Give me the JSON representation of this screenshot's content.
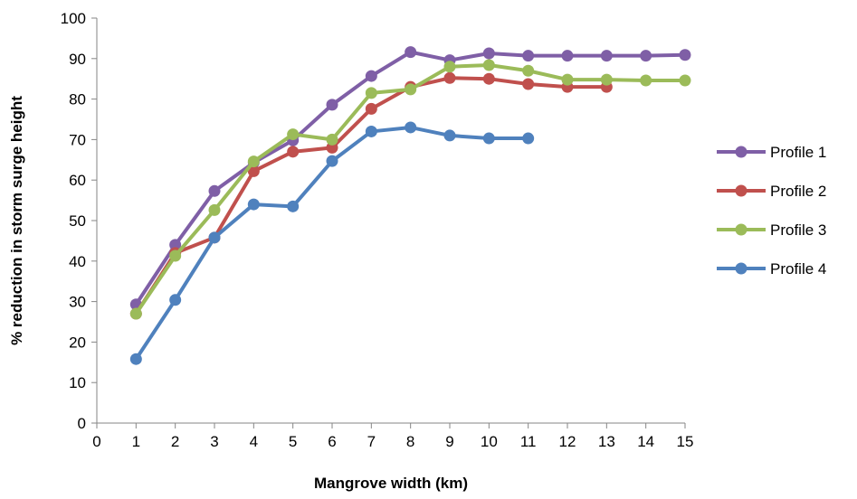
{
  "chart_data": {
    "type": "line",
    "title": "",
    "xlabel": "Mangrove width (km)",
    "ylabel": "% reduction in storm surge height",
    "xlim": [
      0,
      15
    ],
    "ylim": [
      0,
      100
    ],
    "x_ticks": [
      0,
      1,
      2,
      3,
      4,
      5,
      6,
      7,
      8,
      9,
      10,
      11,
      12,
      13,
      14,
      15
    ],
    "y_ticks": [
      0,
      10,
      20,
      30,
      40,
      50,
      60,
      70,
      80,
      90,
      100
    ],
    "grid": false,
    "legend_position": "right",
    "series": [
      {
        "name": "Profile 1",
        "color": "#7f5fa6",
        "x": [
          1,
          2,
          3,
          4,
          5,
          6,
          7,
          8,
          9,
          10,
          11,
          12,
          13,
          14,
          15
        ],
        "y": [
          29.3,
          44.0,
          57.3,
          64.3,
          69.8,
          78.6,
          85.7,
          91.6,
          89.6,
          91.3,
          90.7,
          90.7,
          90.7,
          90.7,
          90.9
        ]
      },
      {
        "name": "Profile 2",
        "color": "#c0504d",
        "x": [
          1,
          2,
          3,
          4,
          5,
          6,
          7,
          8,
          9,
          10,
          11,
          12,
          13
        ],
        "y": [
          27.0,
          42.0,
          45.8,
          62.2,
          67.0,
          68.0,
          77.6,
          83.0,
          85.2,
          85.0,
          83.7,
          83.0,
          83.0
        ]
      },
      {
        "name": "Profile 3",
        "color": "#9bbb59",
        "x": [
          1,
          2,
          3,
          4,
          5,
          6,
          7,
          8,
          9,
          10,
          11,
          12,
          13,
          14,
          15
        ],
        "y": [
          27.0,
          41.3,
          52.6,
          64.6,
          71.3,
          70.0,
          81.5,
          82.4,
          88.0,
          88.4,
          87.0,
          84.8,
          84.8,
          84.6,
          84.6
        ]
      },
      {
        "name": "Profile 4",
        "color": "#4f81bd",
        "x": [
          1,
          2,
          3,
          4,
          5,
          6,
          7,
          8,
          9,
          10,
          11
        ],
        "y": [
          15.8,
          30.4,
          45.8,
          54.0,
          53.5,
          64.7,
          72.0,
          73.0,
          71.0,
          70.3,
          70.3
        ]
      }
    ]
  }
}
